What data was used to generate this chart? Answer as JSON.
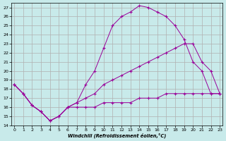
{
  "xlabel": "Windchill (Refroidissement éolien,°C)",
  "bg_color": "#c8eaea",
  "grid_color": "#b0b0b0",
  "line_color": "#990099",
  "xlim": [
    -0.3,
    23.3
  ],
  "ylim": [
    14,
    27.5
  ],
  "yticks": [
    14,
    15,
    16,
    17,
    18,
    19,
    20,
    21,
    22,
    23,
    24,
    25,
    26,
    27
  ],
  "xticks": [
    0,
    1,
    2,
    3,
    4,
    5,
    6,
    7,
    8,
    9,
    10,
    11,
    12,
    13,
    14,
    15,
    16,
    17,
    18,
    19,
    20,
    21,
    22,
    23
  ],
  "line1_x": [
    0,
    1,
    2,
    3,
    4,
    5,
    6,
    7,
    8,
    9,
    10,
    11,
    12,
    13,
    14,
    15,
    16,
    17,
    18,
    19,
    20,
    21,
    22,
    23
  ],
  "line1_y": [
    18.5,
    17.5,
    16.2,
    15.5,
    14.5,
    15.0,
    16.0,
    16.5,
    18.5,
    20.0,
    22.5,
    25.0,
    26.0,
    26.5,
    27.2,
    27.0,
    26.5,
    26.0,
    25.0,
    23.5,
    21.0,
    20.0,
    17.5,
    17.5
  ],
  "line2_x": [
    0,
    1,
    2,
    3,
    4,
    5,
    6,
    7,
    8,
    9,
    10,
    11,
    12,
    13,
    14,
    15,
    16,
    17,
    18,
    19,
    20,
    21,
    22,
    23
  ],
  "line2_y": [
    18.5,
    17.5,
    16.2,
    15.5,
    14.5,
    15.0,
    16.0,
    16.5,
    17.0,
    17.5,
    18.5,
    19.0,
    19.5,
    20.0,
    20.5,
    21.0,
    21.5,
    22.0,
    22.5,
    23.0,
    23.0,
    21.0,
    20.0,
    17.5
  ],
  "line3_x": [
    0,
    1,
    2,
    3,
    4,
    5,
    6,
    7,
    8,
    9,
    10,
    11,
    12,
    13,
    14,
    15,
    16,
    17,
    18,
    19,
    20,
    21,
    22,
    23
  ],
  "line3_y": [
    18.5,
    17.5,
    16.2,
    15.5,
    14.5,
    15.0,
    16.0,
    16.0,
    16.0,
    16.0,
    16.5,
    16.5,
    16.5,
    16.5,
    17.0,
    17.0,
    17.0,
    17.5,
    17.5,
    17.5,
    17.5,
    17.5,
    17.5,
    17.5
  ]
}
